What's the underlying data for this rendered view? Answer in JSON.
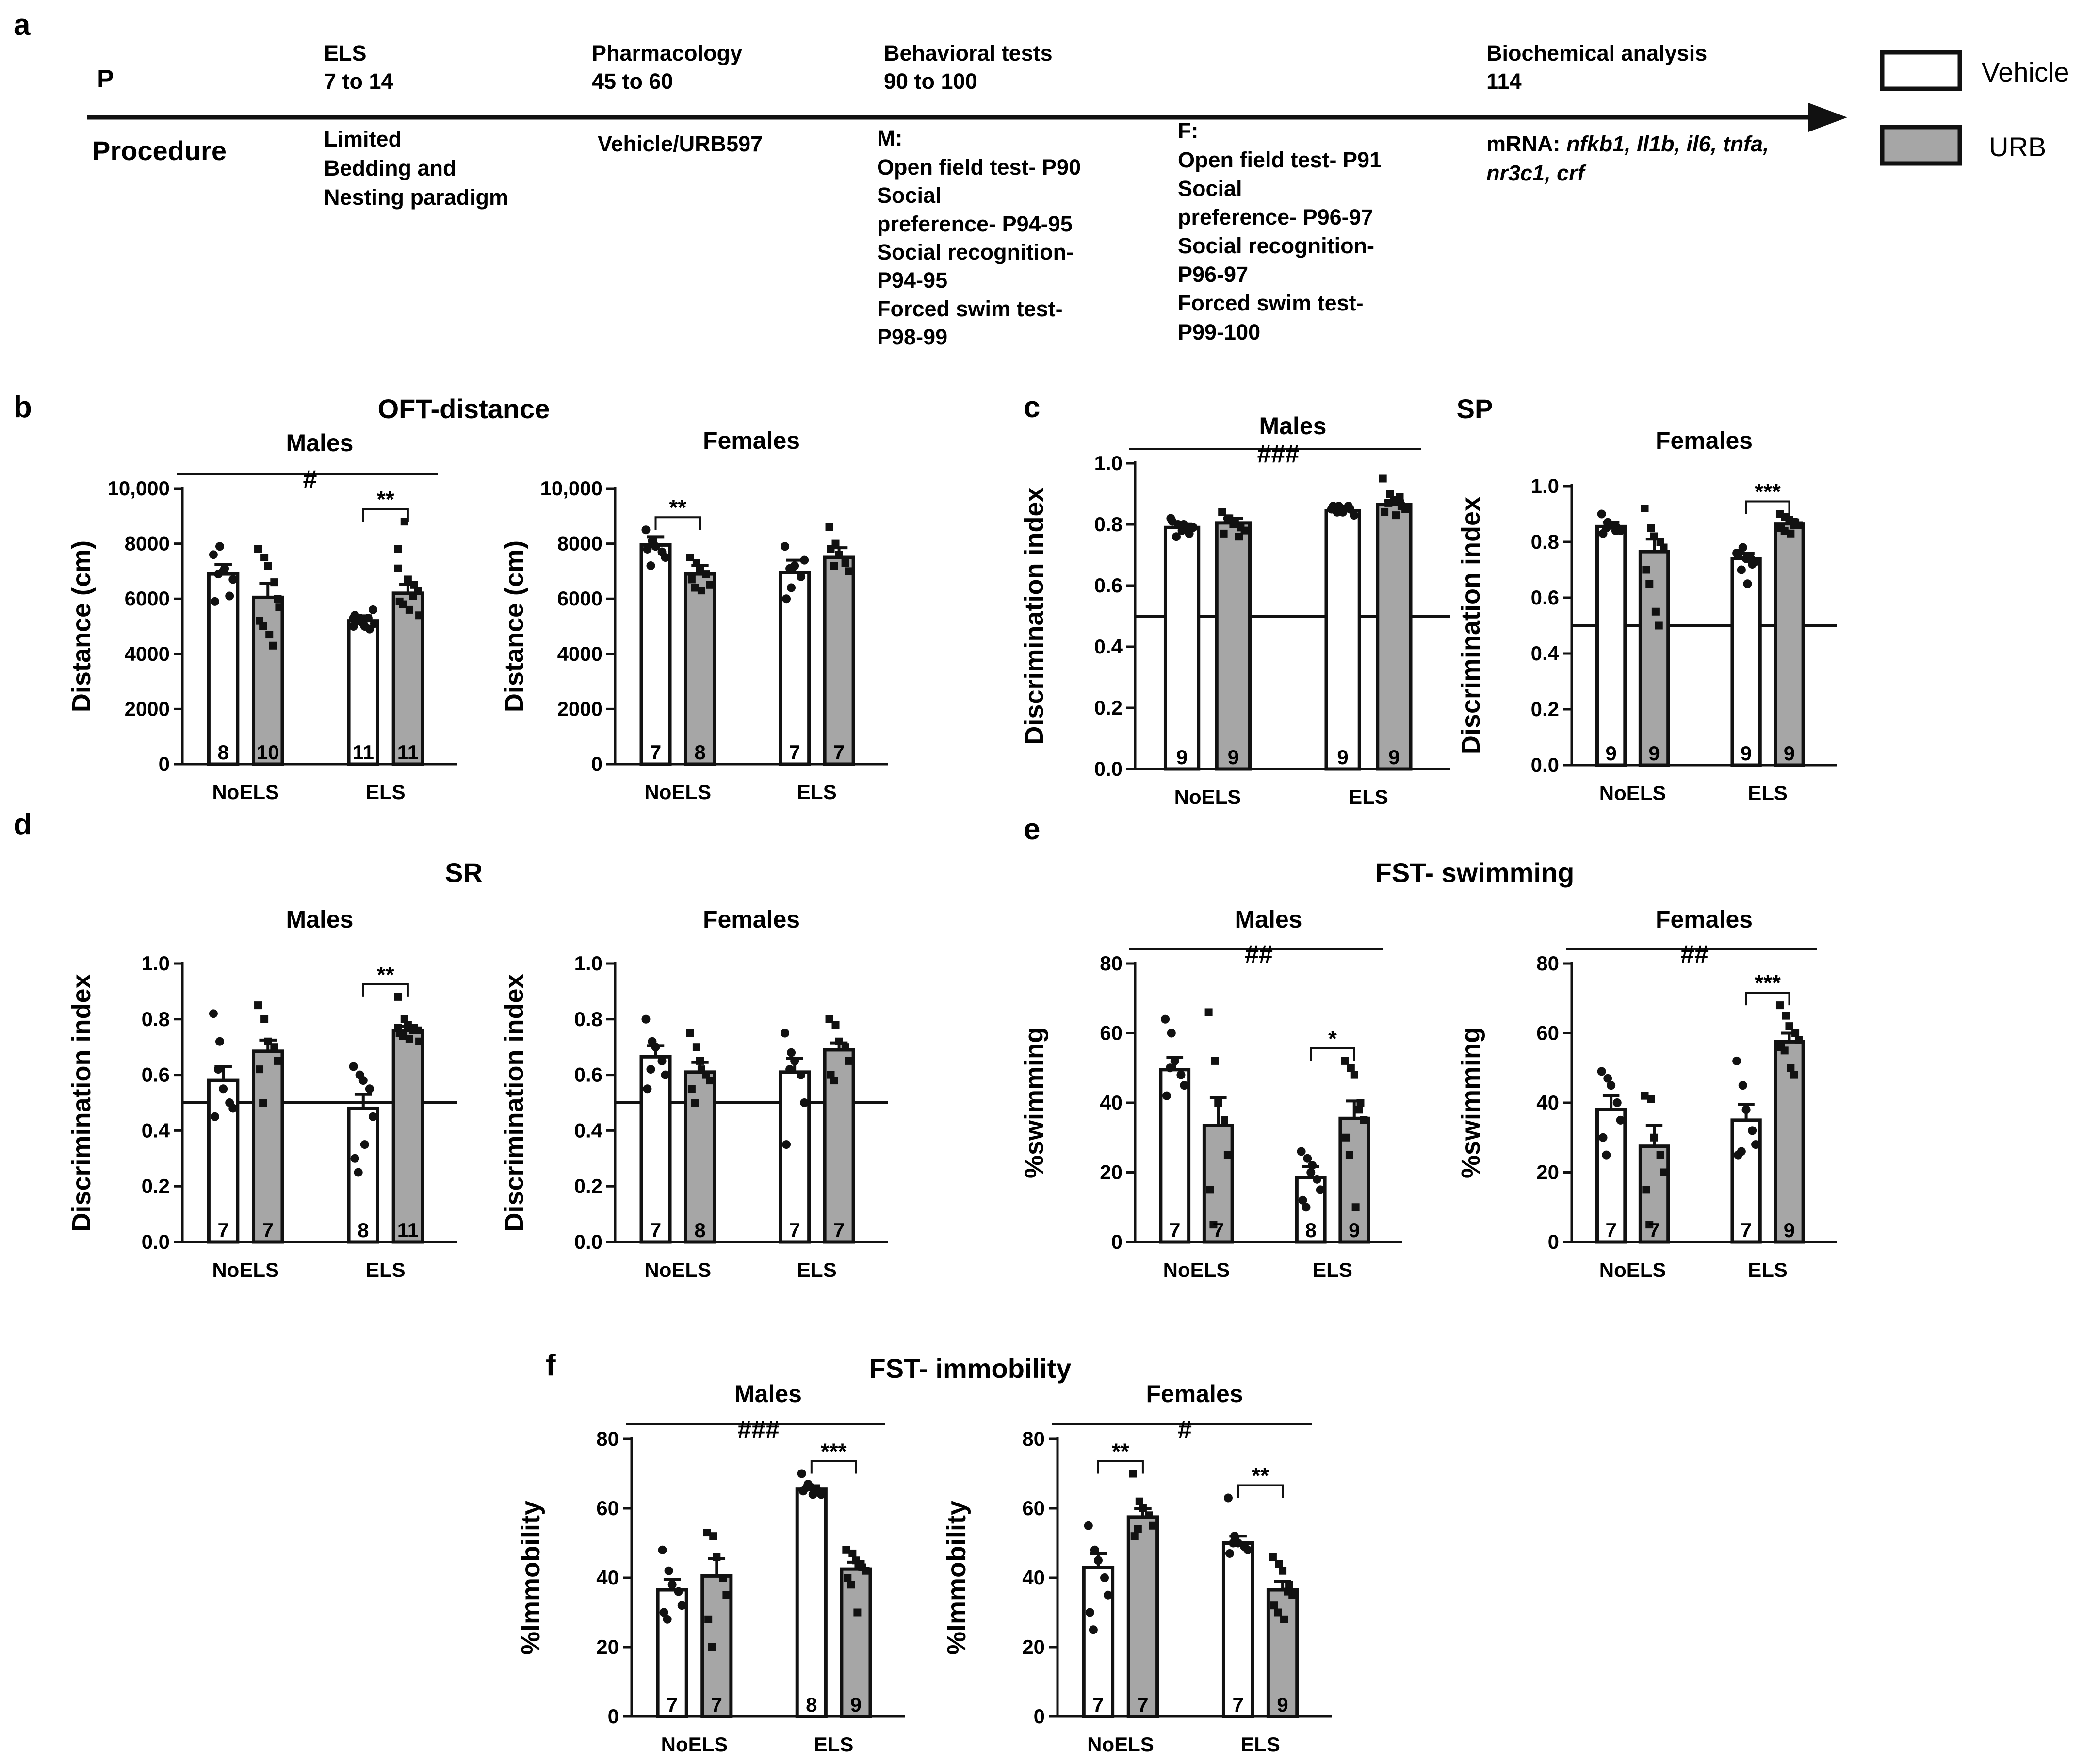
{
  "panel_letters": [
    "a",
    "b",
    "c",
    "d",
    "e",
    "f"
  ],
  "timeline": {
    "p_label": "P",
    "procedure_label": "Procedure",
    "stages": [
      {
        "name": "ELS",
        "range": "7 to 14",
        "detail": [
          "Limited",
          "Bedding and",
          "Nesting paradigm"
        ]
      },
      {
        "name": "Pharmacology",
        "range": "45 to 60",
        "detail": [
          "Vehicle/URB597"
        ]
      },
      {
        "name": "Behavioral tests",
        "range": "90 to 100",
        "detail": [
          "M:",
          "Open field test- P90",
          "Social",
          "preference- P94-95",
          "Social recognition-",
          "P94-95",
          "Forced swim test-",
          "P98-99"
        ]
      },
      {
        "name": "",
        "range": "",
        "detail": [
          "F:",
          "Open field test- P91",
          "Social",
          "preference- P96-97",
          "Social recognition-",
          "P96-97",
          "Forced swim test-",
          "P99-100"
        ]
      },
      {
        "name": "Biochemical analysis",
        "range": "114",
        "detail": [
          "mRNA: ",
          "nfkb1, Il1b, il6, tnfa,",
          "nr3c1, crf"
        ]
      }
    ]
  },
  "legend": {
    "items": [
      {
        "label": "Vehicle",
        "color": "#ffffff"
      },
      {
        "label": "URB",
        "color": "#a6a6a6"
      }
    ]
  },
  "colors": {
    "vehicle": "#ffffff",
    "urb": "#a6a6a6",
    "stroke": "#111111"
  },
  "group_titles": {
    "b": "OFT-distance",
    "c": "SP",
    "d": "SR",
    "e": "FST- swimming",
    "f": "FST- immobility"
  },
  "chart_data": [
    {
      "id": "b-males",
      "panel": "b",
      "type": "bar",
      "title": "Males",
      "ylabel": "Distance (cm)",
      "ylim": [
        0,
        10000
      ],
      "yticks": [
        0,
        2000,
        4000,
        6000,
        8000,
        10000
      ],
      "ytick_labels": [
        "0",
        "2000",
        "4000",
        "6000",
        "8000",
        "10,000"
      ],
      "categories": [
        "NoELS",
        "ELS"
      ],
      "series": [
        {
          "name": "Vehicle",
          "values": [
            6900,
            5200
          ],
          "sem": [
            350,
            180
          ],
          "n": [
            "8",
            "11"
          ]
        },
        {
          "name": "URB",
          "values": [
            6050,
            6200
          ],
          "sem": [
            500,
            320
          ],
          "n": [
            "10",
            "11"
          ]
        }
      ],
      "top_line": {
        "label": "#"
      },
      "brackets": [
        {
          "group": 1,
          "label": "**"
        }
      ],
      "points": [
        [
          7600,
          7900,
          7000,
          6100,
          6700,
          5900,
          6900,
          7100
        ],
        [
          5000,
          5300,
          5100,
          4900,
          5600,
          5400,
          5200,
          5000,
          5300,
          5100,
          5300
        ],
        [
          7800,
          7500,
          7200,
          6600,
          6000,
          5200,
          5000,
          4700,
          4300,
          5700
        ],
        [
          7800,
          8800,
          6700,
          6500,
          6300,
          5900,
          5800,
          5600,
          6100,
          5400,
          7100
        ]
      ]
    },
    {
      "id": "b-females",
      "panel": "b",
      "type": "bar",
      "title": "Females",
      "ylabel": "Distance (cm)",
      "ylim": [
        0,
        10000
      ],
      "yticks": [
        0,
        2000,
        4000,
        6000,
        8000,
        10000
      ],
      "ytick_labels": [
        "0",
        "2000",
        "4000",
        "6000",
        "8000",
        "10,000"
      ],
      "categories": [
        "NoELS",
        "ELS"
      ],
      "series": [
        {
          "name": "Vehicle",
          "values": [
            7950,
            6950
          ],
          "sem": [
            300,
            450
          ],
          "n": [
            "7",
            "7"
          ]
        },
        {
          "name": "URB",
          "values": [
            6900,
            7500
          ],
          "sem": [
            300,
            350
          ],
          "n": [
            "8",
            "7"
          ]
        }
      ],
      "top_line": null,
      "brackets": [
        {
          "group": 0,
          "label": "**"
        }
      ],
      "points": [
        [
          8500,
          8100,
          7900,
          7700,
          7500,
          7800,
          7200
        ],
        [
          7900,
          6400,
          7200,
          6800,
          7400,
          6000,
          7100
        ],
        [
          7500,
          7300,
          7100,
          6900,
          6500,
          6700,
          6400,
          6300
        ],
        [
          8600,
          8000,
          7600,
          7300,
          7000,
          7800,
          7200
        ]
      ]
    },
    {
      "id": "c-males",
      "panel": "c",
      "type": "bar",
      "title": "Males",
      "ylabel": "Discrimination index",
      "ylim": [
        0,
        1.0
      ],
      "yticks": [
        0,
        0.2,
        0.4,
        0.6,
        0.8,
        1.0
      ],
      "ytick_labels": [
        "0.0",
        "0.2",
        "0.4",
        "0.6",
        "0.8",
        "1.0"
      ],
      "categories": [
        "NoELS",
        "ELS"
      ],
      "series": [
        {
          "name": "Vehicle",
          "values": [
            0.79,
            0.845
          ],
          "sem": [
            0.012,
            0.01
          ],
          "n": [
            "9",
            "9"
          ]
        },
        {
          "name": "URB",
          "values": [
            0.805,
            0.865
          ],
          "sem": [
            0.015,
            0.012
          ],
          "n": [
            "9",
            "9"
          ]
        }
      ],
      "top_line": {
        "label": "###"
      },
      "reference_line": 0.5,
      "brackets": [],
      "points": [
        [
          0.82,
          0.8,
          0.78,
          0.77,
          0.79,
          0.81,
          0.76,
          0.8,
          0.79
        ],
        [
          0.85,
          0.86,
          0.84,
          0.85,
          0.83,
          0.86,
          0.84,
          0.85,
          0.86
        ],
        [
          0.84,
          0.82,
          0.8,
          0.79,
          0.78,
          0.77,
          0.82,
          0.81,
          0.76
        ],
        [
          0.95,
          0.9,
          0.88,
          0.86,
          0.85,
          0.84,
          0.87,
          0.83,
          0.89
        ]
      ]
    },
    {
      "id": "c-females",
      "panel": "c",
      "type": "bar",
      "title": "Females",
      "ylabel": "Discrimination index",
      "ylim": [
        0,
        1.0
      ],
      "yticks": [
        0,
        0.2,
        0.4,
        0.6,
        0.8,
        1.0
      ],
      "ytick_labels": [
        "0.0",
        "0.2",
        "0.4",
        "0.6",
        "0.8",
        "1.0"
      ],
      "categories": [
        "NoELS",
        "ELS"
      ],
      "series": [
        {
          "name": "Vehicle",
          "values": [
            0.855,
            0.74
          ],
          "sem": [
            0.015,
            0.02
          ],
          "n": [
            "9",
            "9"
          ]
        },
        {
          "name": "URB",
          "values": [
            0.765,
            0.865
          ],
          "sem": [
            0.045,
            0.015
          ],
          "n": [
            "9",
            "9"
          ]
        }
      ],
      "top_line": null,
      "reference_line": 0.5,
      "brackets": [
        {
          "group": 1,
          "label": "***"
        }
      ],
      "points": [
        [
          0.9,
          0.87,
          0.86,
          0.85,
          0.84,
          0.83,
          0.85,
          0.86,
          0.84
        ],
        [
          0.76,
          0.78,
          0.74,
          0.72,
          0.73,
          0.75,
          0.7,
          0.65,
          0.74
        ],
        [
          0.92,
          0.85,
          0.82,
          0.8,
          0.78,
          0.7,
          0.65,
          0.55,
          0.5
        ],
        [
          0.9,
          0.89,
          0.88,
          0.87,
          0.86,
          0.85,
          0.84,
          0.83,
          0.86
        ]
      ]
    },
    {
      "id": "d-males",
      "panel": "d",
      "type": "bar",
      "title": "Males",
      "ylabel": "Discrimination index",
      "ylim": [
        0,
        1.0
      ],
      "yticks": [
        0,
        0.2,
        0.4,
        0.6,
        0.8,
        1.0
      ],
      "ytick_labels": [
        "0.0",
        "0.2",
        "0.4",
        "0.6",
        "0.8",
        "1.0"
      ],
      "categories": [
        "NoELS",
        "ELS"
      ],
      "series": [
        {
          "name": "Vehicle",
          "values": [
            0.58,
            0.48
          ],
          "sem": [
            0.05,
            0.05
          ],
          "n": [
            "7",
            "8"
          ]
        },
        {
          "name": "URB",
          "values": [
            0.685,
            0.76
          ],
          "sem": [
            0.04,
            0.015
          ],
          "n": [
            "7",
            "11"
          ]
        }
      ],
      "top_line": null,
      "reference_line": 0.5,
      "brackets": [
        {
          "group": 1,
          "label": "**"
        }
      ],
      "points": [
        [
          0.82,
          0.72,
          0.55,
          0.5,
          0.48,
          0.45,
          0.62
        ],
        [
          0.63,
          0.6,
          0.58,
          0.55,
          0.45,
          0.3,
          0.25,
          0.35
        ],
        [
          0.85,
          0.8,
          0.72,
          0.7,
          0.65,
          0.62,
          0.5
        ],
        [
          0.88,
          0.8,
          0.78,
          0.77,
          0.76,
          0.75,
          0.74,
          0.73,
          0.76,
          0.72,
          0.77
        ]
      ]
    },
    {
      "id": "d-females",
      "panel": "d",
      "type": "bar",
      "title": "Females",
      "ylabel": "Discrimination index",
      "ylim": [
        0,
        1.0
      ],
      "yticks": [
        0,
        0.2,
        0.4,
        0.6,
        0.8,
        1.0
      ],
      "ytick_labels": [
        "0.0",
        "0.2",
        "0.4",
        "0.6",
        "0.8",
        "1.0"
      ],
      "categories": [
        "NoELS",
        "ELS"
      ],
      "series": [
        {
          "name": "Vehicle",
          "values": [
            0.665,
            0.61
          ],
          "sem": [
            0.04,
            0.05
          ],
          "n": [
            "7",
            "7"
          ]
        },
        {
          "name": "URB",
          "values": [
            0.61,
            0.69
          ],
          "sem": [
            0.035,
            0.025
          ],
          "n": [
            "8",
            "7"
          ]
        }
      ],
      "top_line": null,
      "reference_line": 0.5,
      "brackets": [],
      "points": [
        [
          0.8,
          0.72,
          0.7,
          0.65,
          0.6,
          0.55,
          0.62
        ],
        [
          0.75,
          0.68,
          0.65,
          0.6,
          0.5,
          0.35,
          0.62
        ],
        [
          0.75,
          0.7,
          0.65,
          0.6,
          0.58,
          0.55,
          0.5,
          0.62
        ],
        [
          0.8,
          0.78,
          0.72,
          0.7,
          0.65,
          0.6,
          0.58
        ]
      ]
    },
    {
      "id": "e-males",
      "panel": "e",
      "type": "bar",
      "title": "Males",
      "ylabel": "%swimming",
      "ylim": [
        0,
        80
      ],
      "yticks": [
        0,
        20,
        40,
        60,
        80
      ],
      "ytick_labels": [
        "0",
        "20",
        "40",
        "60",
        "80"
      ],
      "categories": [
        "NoELS",
        "ELS"
      ],
      "series": [
        {
          "name": "Vehicle",
          "values": [
            49.5,
            18.5
          ],
          "sem": [
            3.5,
            3.2
          ],
          "n": [
            "7",
            "8"
          ]
        },
        {
          "name": "URB",
          "values": [
            33.5,
            35.5
          ],
          "sem": [
            8,
            5
          ],
          "n": [
            "7",
            "9"
          ]
        }
      ],
      "top_line": {
        "label": "##"
      },
      "brackets": [
        {
          "group": 1,
          "label": "*"
        }
      ],
      "points": [
        [
          64,
          60,
          52,
          48,
          45,
          42,
          50
        ],
        [
          26,
          24,
          20,
          18,
          15,
          12,
          10,
          22
        ],
        [
          66,
          52,
          40,
          35,
          25,
          15,
          5
        ],
        [
          52,
          50,
          48,
          40,
          35,
          30,
          25,
          10,
          38
        ]
      ]
    },
    {
      "id": "e-females",
      "panel": "e",
      "type": "bar",
      "title": "Females",
      "ylabel": "%swimming",
      "ylim": [
        0,
        80
      ],
      "yticks": [
        0,
        20,
        40,
        60,
        80
      ],
      "ytick_labels": [
        "0",
        "20",
        "40",
        "60",
        "80"
      ],
      "categories": [
        "NoELS",
        "ELS"
      ],
      "series": [
        {
          "name": "Vehicle",
          "values": [
            38,
            35
          ],
          "sem": [
            4,
            4.5
          ],
          "n": [
            "7",
            "7"
          ]
        },
        {
          "name": "URB",
          "values": [
            27.5,
            57.5
          ],
          "sem": [
            6,
            2.5
          ],
          "n": [
            "7",
            "9"
          ]
        }
      ],
      "top_line": {
        "label": "##"
      },
      "brackets": [
        {
          "group": 1,
          "label": "***"
        }
      ],
      "points": [
        [
          49,
          47,
          45,
          40,
          35,
          30,
          25
        ],
        [
          52,
          45,
          38,
          32,
          28,
          25,
          26
        ],
        [
          42,
          41,
          30,
          25,
          20,
          15,
          5
        ],
        [
          68,
          65,
          62,
          60,
          58,
          56,
          55,
          50,
          48
        ]
      ]
    },
    {
      "id": "f-males",
      "panel": "f",
      "type": "bar",
      "title": "Males",
      "ylabel": "%Immobility",
      "ylim": [
        0,
        80
      ],
      "yticks": [
        0,
        20,
        40,
        60,
        80
      ],
      "ytick_labels": [
        "0",
        "20",
        "40",
        "60",
        "80"
      ],
      "categories": [
        "NoELS",
        "ELS"
      ],
      "series": [
        {
          "name": "Vehicle",
          "values": [
            36.5,
            65.5
          ],
          "sem": [
            3,
            1
          ],
          "n": [
            "7",
            "8"
          ]
        },
        {
          "name": "URB",
          "values": [
            40.5,
            42.5
          ],
          "sem": [
            5,
            2
          ],
          "n": [
            "7",
            "9"
          ]
        }
      ],
      "top_line": {
        "label": "###"
      },
      "brackets": [
        {
          "group": 1,
          "label": "***"
        }
      ],
      "points": [
        [
          48,
          42,
          38,
          36,
          32,
          30,
          28
        ],
        [
          70,
          67,
          66,
          65,
          64,
          65,
          66,
          64
        ],
        [
          53,
          52,
          46,
          40,
          35,
          28,
          20
        ],
        [
          48,
          47,
          45,
          43,
          42,
          40,
          38,
          30,
          44
        ]
      ]
    },
    {
      "id": "f-females",
      "panel": "f",
      "type": "bar",
      "title": "Females",
      "ylabel": "%Immobility",
      "ylim": [
        0,
        80
      ],
      "yticks": [
        0,
        20,
        40,
        60,
        80
      ],
      "ytick_labels": [
        "0",
        "20",
        "40",
        "60",
        "80"
      ],
      "categories": [
        "NoELS",
        "ELS"
      ],
      "series": [
        {
          "name": "Vehicle",
          "values": [
            43,
            50
          ],
          "sem": [
            4,
            2
          ],
          "n": [
            "7",
            "7"
          ]
        },
        {
          "name": "URB",
          "values": [
            57.5,
            36.5
          ],
          "sem": [
            2.5,
            2.5
          ],
          "n": [
            "7",
            "9"
          ]
        }
      ],
      "top_line": {
        "label": "#"
      },
      "brackets": [
        {
          "group": 0,
          "label": "**"
        },
        {
          "group": 1,
          "label": "**"
        }
      ],
      "points": [
        [
          55,
          48,
          45,
          40,
          35,
          30,
          25
        ],
        [
          63,
          52,
          50,
          49,
          48,
          47,
          50
        ],
        [
          70,
          62,
          60,
          58,
          55,
          52,
          54
        ],
        [
          46,
          44,
          42,
          38,
          35,
          32,
          30,
          28,
          36
        ]
      ]
    }
  ]
}
